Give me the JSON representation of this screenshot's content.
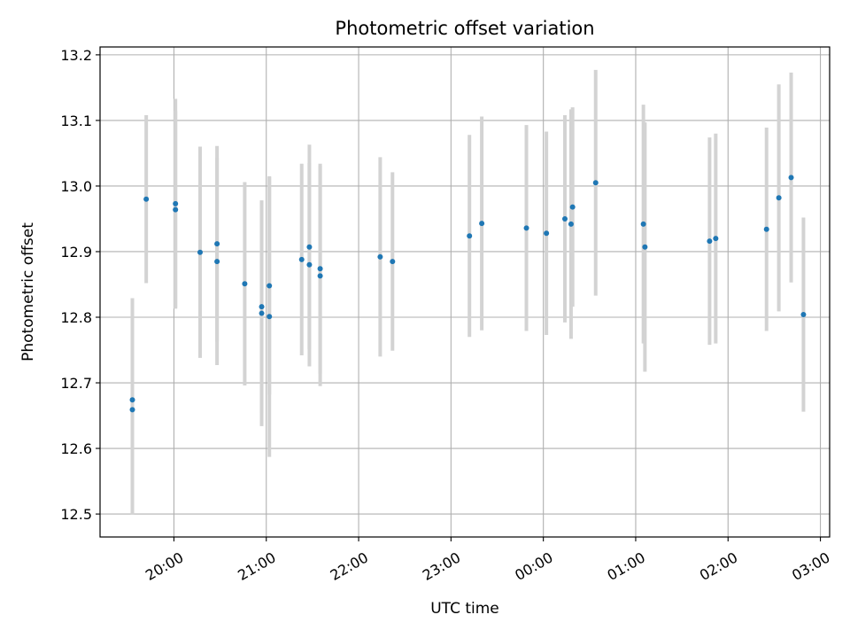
{
  "chart_data": {
    "type": "scatter",
    "title": "Photometric offset variation",
    "xlabel": "UTC time",
    "ylabel": "Photometric offset",
    "grid": true,
    "legend": "none",
    "x_unit": "UTC, night spanning two days (hours past 24:00 are after midnight)",
    "xlim": [
      "19:12",
      "03:06"
    ],
    "ylim": [
      12.465,
      13.212
    ],
    "x_ticks": [
      "20:00",
      "21:00",
      "22:00",
      "23:00",
      "00:00",
      "01:00",
      "02:00",
      "03:00"
    ],
    "y_ticks": [
      "12.5",
      "12.6",
      "12.7",
      "12.8",
      "12.9",
      "13.0",
      "13.1",
      "13.2"
    ],
    "colors": {
      "points": "#1f77b4",
      "errorbars": "#d3d3d3",
      "grid": "#b0b0b0"
    },
    "points": [
      {
        "t": "19:33",
        "y": 12.659,
        "err": 0.16
      },
      {
        "t": "19:33",
        "y": 12.674,
        "err": 0.155
      },
      {
        "t": "19:42",
        "y": 12.98,
        "err": 0.128
      },
      {
        "t": "20:01",
        "y": 12.964,
        "err": 0.15
      },
      {
        "t": "20:01",
        "y": 12.973,
        "err": 0.16
      },
      {
        "t": "20:17",
        "y": 12.899,
        "err": 0.161
      },
      {
        "t": "20:28",
        "y": 12.912,
        "err": 0.149
      },
      {
        "t": "20:28",
        "y": 12.885,
        "err": 0.158
      },
      {
        "t": "20:46",
        "y": 12.851,
        "err": 0.155
      },
      {
        "t": "20:57",
        "y": 12.816,
        "err": 0.162
      },
      {
        "t": "20:57",
        "y": 12.806,
        "err": 0.172
      },
      {
        "t": "21:02",
        "y": 12.848,
        "err": 0.166
      },
      {
        "t": "21:02",
        "y": 12.801,
        "err": 0.214
      },
      {
        "t": "21:23",
        "y": 12.888,
        "err": 0.146
      },
      {
        "t": "21:28",
        "y": 12.907,
        "err": 0.156
      },
      {
        "t": "21:28",
        "y": 12.88,
        "err": 0.155
      },
      {
        "t": "21:35",
        "y": 12.874,
        "err": 0.16
      },
      {
        "t": "21:35",
        "y": 12.863,
        "err": 0.168
      },
      {
        "t": "22:14",
        "y": 12.892,
        "err": 0.152
      },
      {
        "t": "22:22",
        "y": 12.885,
        "err": 0.136
      },
      {
        "t": "23:12",
        "y": 12.924,
        "err": 0.154
      },
      {
        "t": "23:20",
        "y": 12.943,
        "err": 0.163
      },
      {
        "t": "23:49",
        "y": 12.936,
        "err": 0.157
      },
      {
        "t": "24:02",
        "y": 12.928,
        "err": 0.155
      },
      {
        "t": "24:14",
        "y": 12.95,
        "err": 0.158
      },
      {
        "t": "24:18",
        "y": 12.942,
        "err": 0.175
      },
      {
        "t": "24:19",
        "y": 12.968,
        "err": 0.152
      },
      {
        "t": "24:34",
        "y": 13.005,
        "err": 0.172
      },
      {
        "t": "25:05",
        "y": 12.942,
        "err": 0.182
      },
      {
        "t": "25:06",
        "y": 12.907,
        "err": 0.19
      },
      {
        "t": "25:48",
        "y": 12.916,
        "err": 0.158
      },
      {
        "t": "25:52",
        "y": 12.92,
        "err": 0.16
      },
      {
        "t": "26:25",
        "y": 12.934,
        "err": 0.155
      },
      {
        "t": "26:33",
        "y": 12.982,
        "err": 0.173
      },
      {
        "t": "26:41",
        "y": 13.013,
        "err": 0.16
      },
      {
        "t": "26:49",
        "y": 12.804,
        "err": 0.148
      }
    ]
  }
}
